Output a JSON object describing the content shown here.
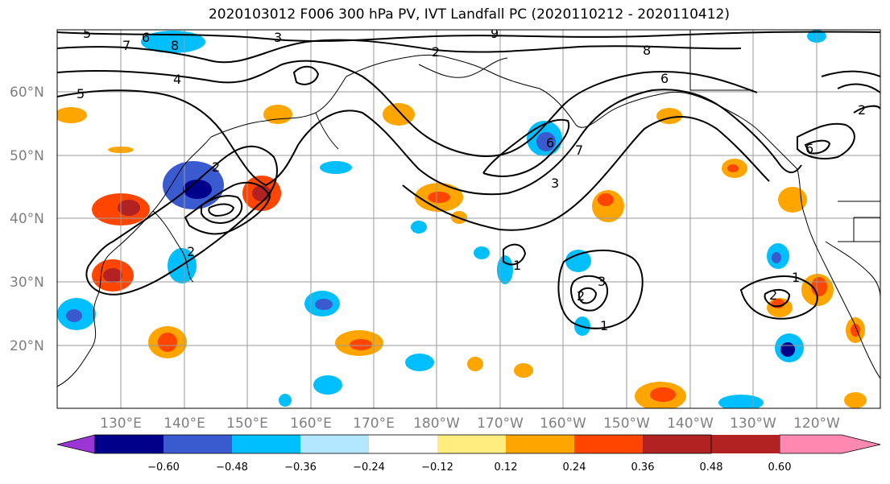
{
  "title": "2020103012 F006 300 hPa PV, IVT Landfall PC (2020110212 - 2020110412)",
  "lat_labels": [
    "60°N",
    "50°N",
    "40°N",
    "30°N",
    "20°N"
  ],
  "lon_labels": [
    "130°E",
    "140°E",
    "150°E",
    "160°E",
    "170°E",
    "180°W",
    "170°W",
    "160°W",
    "150°W",
    "140°W",
    "130°W",
    "120°W"
  ],
  "colorbar": {
    "tick_labels": [
      "−0.60",
      "−0.48",
      "−0.36",
      "−0.24",
      "−0.12",
      "0.12",
      "0.24",
      "0.36",
      "0.48",
      "0.60"
    ],
    "colors": [
      "#9a35d6",
      "#00008b",
      "#3a5bd0",
      "#00bfff",
      "#b3e6ff",
      "#ffffff",
      "#ffed80",
      "#ffa500",
      "#ff4500",
      "#b22222",
      "#ff88b0"
    ]
  },
  "contour_labels": [
    "5",
    "7",
    "6",
    "8",
    "3",
    "4",
    "5",
    "2",
    "8",
    "6",
    "7",
    "2",
    "3",
    "6",
    "1",
    "3",
    "2",
    "1",
    "2",
    "1",
    "2",
    "6",
    "2",
    "9"
  ]
}
